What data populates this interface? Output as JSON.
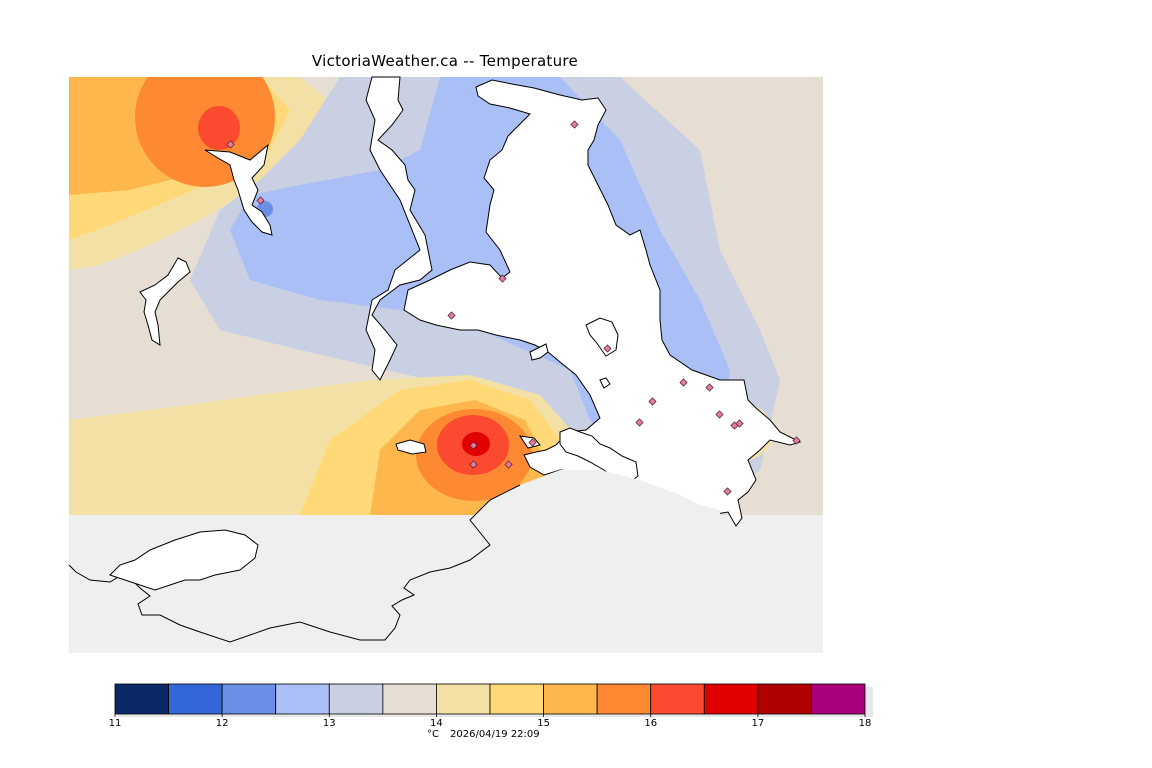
{
  "map": {
    "title": "VictoriaWeather.ca -- Temperature",
    "variable": "Temperature",
    "background_color": "#efefef",
    "coastline_color": "#000000",
    "station_marker_color": "#e87ba0",
    "stations_count": 19
  },
  "colorbar": {
    "unit": "°C",
    "timestamp": "2026/04/19 22:09",
    "tick_labels": [
      "11",
      "12",
      "13",
      "14",
      "15",
      "16",
      "17",
      "18"
    ],
    "bins": [
      {
        "from": 11.0,
        "to": 11.5,
        "color": "#0b2868"
      },
      {
        "from": 11.5,
        "to": 12.0,
        "color": "#3366d6"
      },
      {
        "from": 12.0,
        "to": 12.5,
        "color": "#6b8ee6"
      },
      {
        "from": 12.5,
        "to": 13.0,
        "color": "#a9bff5"
      },
      {
        "from": 13.0,
        "to": 13.5,
        "color": "#c9d0e4"
      },
      {
        "from": 13.5,
        "to": 14.0,
        "color": "#e6ded2"
      },
      {
        "from": 14.0,
        "to": 14.5,
        "color": "#f3e0a5"
      },
      {
        "from": 14.5,
        "to": 15.0,
        "color": "#ffd878"
      },
      {
        "from": 15.0,
        "to": 15.5,
        "color": "#feb74c"
      },
      {
        "from": 15.5,
        "to": 16.0,
        "color": "#fd8a33"
      },
      {
        "from": 16.0,
        "to": 16.5,
        "color": "#fb4a30"
      },
      {
        "from": 16.5,
        "to": 17.0,
        "color": "#e00000"
      },
      {
        "from": 17.0,
        "to": 17.5,
        "color": "#b00000"
      },
      {
        "from": 17.5,
        "to": 18.0,
        "color": "#a8007a"
      }
    ]
  }
}
